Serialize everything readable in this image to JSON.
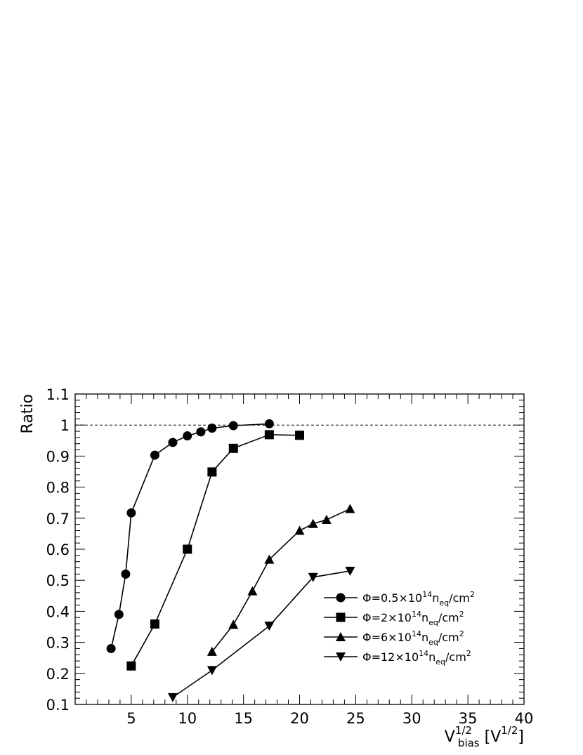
{
  "chart_data": {
    "type": "line",
    "title": "",
    "ylabel": "Ratio",
    "xlabel": {
      "base": "V",
      "sup": "1/2",
      "sub": "bias",
      "unit_open": " [V",
      "unit_sup": "1/2",
      "unit_close": "]"
    },
    "xlim": [
      0,
      40
    ],
    "ylim": [
      0.1,
      1.1
    ],
    "x_ticks": [
      5,
      10,
      15,
      20,
      25,
      30,
      35,
      40
    ],
    "x_tick_labels": [
      "5",
      "10",
      "15",
      "20",
      "25",
      "30",
      "35",
      "40"
    ],
    "y_ticks": [
      0.1,
      0.2,
      0.3,
      0.4,
      0.5,
      0.6,
      0.7,
      0.8,
      0.9,
      1,
      1.1
    ],
    "y_tick_labels": [
      "0.1",
      "0.2",
      "0.3",
      "0.4",
      "0.5",
      "0.6",
      "0.7",
      "0.8",
      "0.9",
      "1",
      "1.1"
    ],
    "reference_line": {
      "y": 1.0,
      "style": "dashed"
    },
    "grid": false,
    "legend_position": "bottom-right",
    "series": [
      {
        "name": "Φ=0.5×10¹⁴n_eq/cm²",
        "legend": {
          "pre": "Φ=0.5×10",
          "sup1": "14",
          "mid": "n",
          "sub": "eq",
          "post": "/cm",
          "sup2": "2"
        },
        "marker": "circle",
        "x": [
          3.2,
          3.9,
          4.5,
          5.0,
          7.1,
          8.7,
          10.0,
          11.2,
          12.2,
          14.1,
          17.3
        ],
        "y": [
          0.28,
          0.39,
          0.52,
          0.717,
          0.903,
          0.944,
          0.965,
          0.978,
          0.99,
          0.998,
          1.004
        ]
      },
      {
        "name": "Φ=2×10¹⁴n_eq/cm²",
        "legend": {
          "pre": "Φ=2×10",
          "sup1": "14",
          "mid": "n",
          "sub": "eq",
          "post": "/cm",
          "sup2": "2"
        },
        "marker": "square",
        "x": [
          5.0,
          7.1,
          10.0,
          12.2,
          14.1,
          17.3,
          20.0
        ],
        "y": [
          0.224,
          0.359,
          0.6,
          0.849,
          0.925,
          0.969,
          0.967
        ]
      },
      {
        "name": "Φ=6×10¹⁴n_eq/cm²",
        "legend": {
          "pre": "Φ=6×10",
          "sup1": "14",
          "mid": "n",
          "sub": "eq",
          "post": "/cm",
          "sup2": "2"
        },
        "marker": "triangle-up",
        "x": [
          12.2,
          14.1,
          15.8,
          17.3,
          20.0,
          21.2,
          22.4,
          24.5
        ],
        "y": [
          0.27,
          0.357,
          0.465,
          0.567,
          0.66,
          0.682,
          0.695,
          0.73
        ]
      },
      {
        "name": "Φ=12×10¹⁴n_eq/cm²",
        "legend": {
          "pre": "Φ=12×10",
          "sup1": "14",
          "mid": "n",
          "sub": "eq",
          "post": "/cm",
          "sup2": "2"
        },
        "marker": "triangle-down",
        "x": [
          8.7,
          12.2,
          17.3,
          21.2,
          24.5
        ],
        "y": [
          0.123,
          0.21,
          0.353,
          0.51,
          0.53
        ]
      }
    ]
  }
}
